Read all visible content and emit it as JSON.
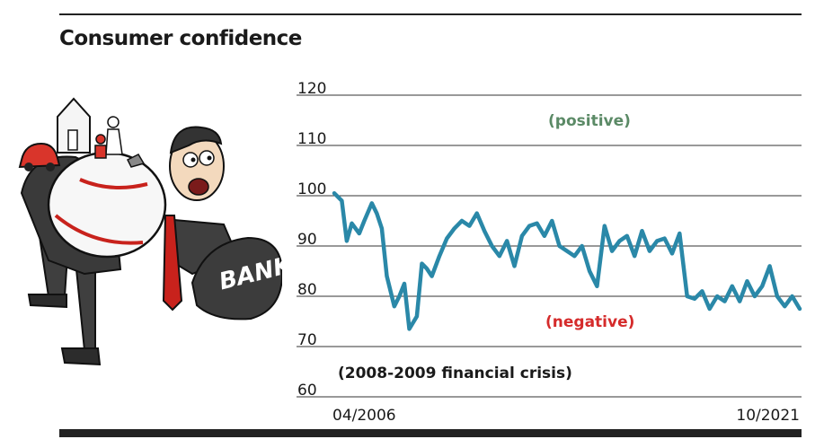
{
  "title": "Consumer confidence",
  "chart_data": {
    "type": "line",
    "title": "Consumer confidence",
    "ylim": [
      60,
      120
    ],
    "yticks": [
      60,
      70,
      80,
      90,
      100,
      110,
      120
    ],
    "x_labels": [
      "04/2006",
      "10/2021"
    ],
    "x_range": [
      "04/2006",
      "10/2021"
    ],
    "grid": true,
    "line_color": "#2a88a8",
    "annotations": [
      {
        "text": "(positive)",
        "color": "#5b8a66"
      },
      {
        "text": "(negative)",
        "color": "#d52b2b"
      },
      {
        "text": "(2008-2009 financial crisis)",
        "color": "#1a1a1a"
      }
    ],
    "series": [
      {
        "x": [
          "2006-04",
          "2006-07",
          "2006-09",
          "2006-11",
          "2007-02",
          "2007-04",
          "2007-07",
          "2007-09",
          "2007-11",
          "2008-01",
          "2008-04",
          "2008-06",
          "2008-08",
          "2008-10",
          "2009-01",
          "2009-03",
          "2009-05",
          "2009-07",
          "2009-10",
          "2010-01",
          "2010-04",
          "2010-07",
          "2010-10",
          "2011-01",
          "2011-04",
          "2011-07",
          "2011-10",
          "2012-01",
          "2012-04",
          "2012-07",
          "2012-10",
          "2013-01",
          "2013-04",
          "2013-07",
          "2013-10",
          "2014-01",
          "2014-04",
          "2014-07",
          "2014-10",
          "2015-01",
          "2015-04",
          "2015-07",
          "2015-10",
          "2016-01",
          "2016-04",
          "2016-07",
          "2016-10",
          "2017-01",
          "2017-04",
          "2017-07",
          "2017-10",
          "2018-01",
          "2018-04",
          "2018-07",
          "2018-10",
          "2019-01",
          "2019-04",
          "2019-07",
          "2019-10",
          "2020-01",
          "2020-04",
          "2020-07",
          "2020-10",
          "2021-01",
          "2021-04",
          "2021-07",
          "2021-10"
        ],
        "values": [
          100.5,
          99,
          91,
          94.5,
          92.5,
          95,
          98.5,
          96.5,
          93.5,
          84,
          78,
          80,
          82.5,
          73.5,
          76,
          86.5,
          85.5,
          84,
          88,
          91.5,
          93.5,
          95,
          94,
          96.5,
          93,
          90,
          88,
          91,
          86,
          92,
          94,
          94.5,
          92,
          95,
          90,
          89,
          88,
          90,
          85,
          82,
          94,
          89,
          91,
          92,
          88,
          93,
          89,
          91,
          91.5,
          88.5,
          92.5,
          80,
          79.5,
          81,
          77.5,
          80,
          79,
          82,
          79,
          83,
          80,
          82,
          86,
          80,
          78,
          80,
          77.5
        ]
      }
    ]
  },
  "illustration": {
    "label": "BANK",
    "colors": {
      "car": "#d9352b",
      "tie": "#c8221c",
      "skin": "#f3d9bd"
    }
  }
}
